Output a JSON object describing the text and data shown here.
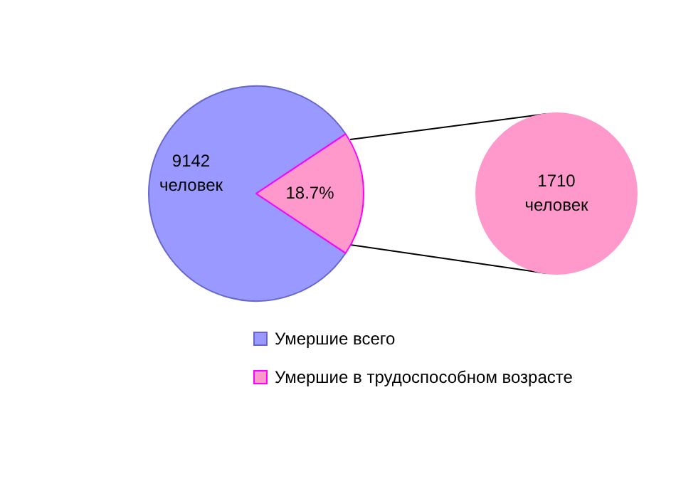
{
  "chart_data": [
    {
      "type": "pie",
      "categories": [
        "Умершие всего",
        "Умершие в трудоспособном возрасте"
      ],
      "values": [
        81.3,
        18.7
      ],
      "colors": [
        "#9999ff",
        "#ff99cc"
      ],
      "value_labels": [
        null,
        "18.7%"
      ],
      "annotations": [
        "9142 человек"
      ],
      "legend": "bottom"
    },
    {
      "type": "pie",
      "categories": [
        null
      ],
      "values": [
        1710
      ],
      "colors": [
        "#ff99cc"
      ],
      "value_labels": [
        "1710 человек"
      ]
    }
  ]
}
